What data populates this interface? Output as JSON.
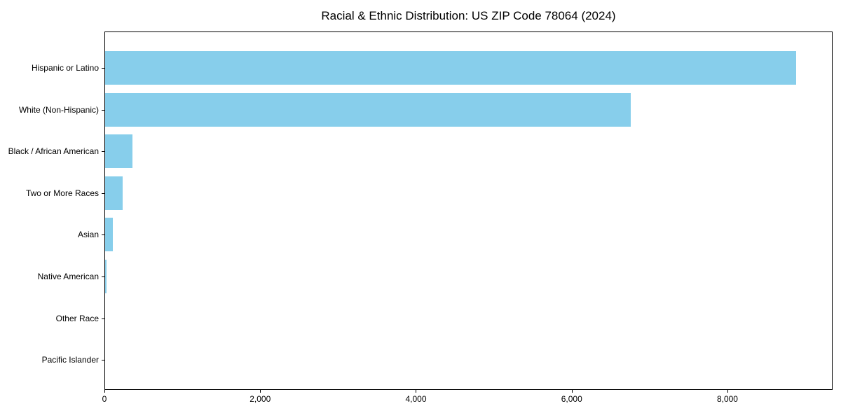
{
  "chart_data": {
    "type": "bar",
    "orientation": "horizontal",
    "title": "Racial & Ethnic Distribution: US ZIP Code 78064 (2024)",
    "categories": [
      "Hispanic or Latino",
      "White (Non-Hispanic)",
      "Black / African American",
      "Two or More Races",
      "Asian",
      "Native American",
      "Other Race",
      "Pacific Islander"
    ],
    "values": [
      8880,
      6760,
      360,
      235,
      105,
      25,
      10,
      2
    ],
    "xlabel": "",
    "ylabel": "",
    "xlim": [
      0,
      9350
    ],
    "x_ticks": [
      0,
      2000,
      4000,
      6000,
      8000
    ],
    "x_tick_labels": [
      "0",
      "2,000",
      "4,000",
      "6,000",
      "8,000"
    ],
    "bar_color": "#87CEEB",
    "axis_color": "#000000",
    "text_color": "#000000",
    "background_color": "#ffffff",
    "grid": false,
    "legend": null
  }
}
